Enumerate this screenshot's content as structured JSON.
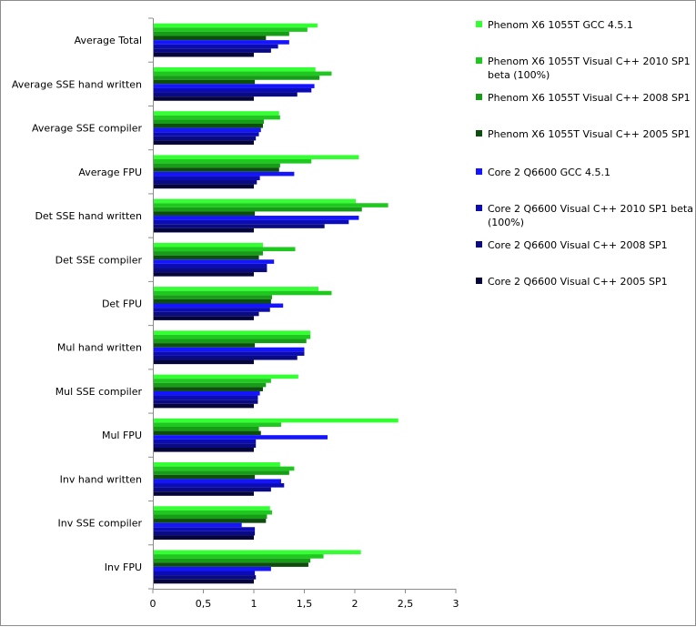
{
  "chart_data": {
    "type": "bar",
    "orientation": "horizontal",
    "title": "",
    "xlabel": "",
    "ylabel": "",
    "xlim": [
      0,
      3
    ],
    "x_ticks": [
      "0",
      "0,5",
      "1",
      "1,5",
      "2",
      "2,5",
      "3"
    ],
    "grid": false,
    "legend_position": "right",
    "categories": [
      "Average Total",
      "Average SSE hand written",
      "Average SSE compiler",
      "Average FPU",
      "Det SSE hand written",
      "Det SSE compiler",
      "Det FPU",
      "Mul hand written",
      "Mul SSE compiler",
      "Mul FPU",
      "Inv hand written",
      "Inv SSE compiler",
      "Inv FPU"
    ],
    "series": [
      {
        "name": "Phenom X6 1055T GCC 4.5.1",
        "color": "#33ff33",
        "values": [
          1.63,
          1.61,
          1.25,
          2.04,
          2.01,
          1.09,
          1.64,
          1.56,
          1.44,
          2.43,
          1.26,
          1.16,
          2.06
        ]
      },
      {
        "name": "Phenom X6 1055T Visual  C++ 2010 SP1 beta (100%)",
        "color": "#1ec81e",
        "values": [
          1.53,
          1.77,
          1.26,
          1.57,
          2.33,
          1.41,
          1.77,
          1.56,
          1.17,
          1.27,
          1.4,
          1.18,
          1.69
        ]
      },
      {
        "name": "Phenom X6 1055T Visual  C++ 2008 SP1",
        "color": "#169c16",
        "values": [
          1.35,
          1.65,
          1.1,
          1.26,
          2.07,
          1.09,
          1.18,
          1.52,
          1.12,
          1.05,
          1.35,
          1.13,
          1.56
        ]
      },
      {
        "name": "Phenom X6 1055T Visual  C++ 2005 SP1",
        "color": "#0d4d0d",
        "values": [
          1.12,
          1.01,
          1.09,
          1.25,
          1.01,
          1.05,
          1.17,
          1.01,
          1.09,
          1.07,
          1.01,
          1.12,
          1.54
        ]
      },
      {
        "name": "Core 2 Q6600 GCC 4.5.1",
        "color": "#1414ff",
        "values": [
          1.35,
          1.6,
          1.07,
          1.4,
          2.04,
          1.2,
          1.29,
          1.5,
          1.06,
          1.73,
          1.27,
          0.88,
          1.17
        ]
      },
      {
        "name": "Core 2 Q6600 Visual  C++ 2010 SP1 beta (100%)",
        "color": "#0c0cb4",
        "values": [
          1.24,
          1.57,
          1.05,
          1.06,
          1.94,
          1.13,
          1.16,
          1.5,
          1.04,
          1.02,
          1.3,
          1.01,
          1.01
        ]
      },
      {
        "name": "Core 2 Q6600 Visual  C++ 2008 SP1",
        "color": "#0a0a82",
        "values": [
          1.17,
          1.43,
          1.02,
          1.03,
          1.7,
          1.13,
          1.05,
          1.43,
          1.04,
          1.02,
          1.17,
          1.01,
          1.02
        ]
      },
      {
        "name": "Core 2 Q6600 Visual  C++ 2005 SP1",
        "color": "#05053c",
        "values": [
          1.0,
          1.0,
          1.0,
          1.0,
          1.0,
          1.0,
          1.0,
          1.0,
          1.0,
          1.0,
          1.0,
          1.0,
          1.0
        ]
      }
    ]
  }
}
